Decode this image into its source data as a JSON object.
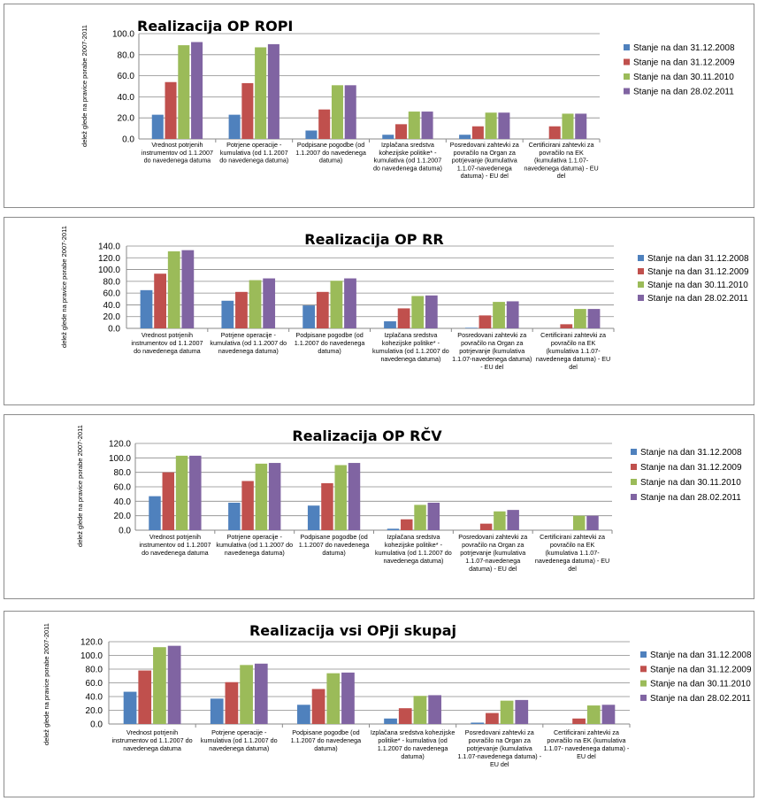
{
  "colors": {
    "s1": "#4f81bd",
    "s2": "#c0504d",
    "s3": "#9bbb59",
    "s4": "#8064a2"
  },
  "chart_data": [
    {
      "type": "bar",
      "title": "Realizacija OP ROPI",
      "ylabel": "delež glede na pravice porabe 2007-2011",
      "ylim": [
        0,
        100
      ],
      "yticks": [
        "0.0",
        "20.0",
        "40.0",
        "60.0",
        "80.0",
        "100.0"
      ],
      "grid": true,
      "legend": "right",
      "categories": [
        [
          "Vrednost potrjenih",
          "instrumentov od 1.1.2007",
          "do navedenega datuma"
        ],
        [
          "Potrjene operacije -",
          "kumulativa (od 1.1.2007",
          "do navedenega datuma)"
        ],
        [
          "Podpisane pogodbe (od",
          "1.1.2007 do navedenega",
          "datuma)"
        ],
        [
          "Izplačana sredstva",
          "kohezijske politike* -",
          "kumulativa (od 1.1.2007",
          "do navedenega datuma)"
        ],
        [
          "Posredovani zahtevki za",
          "povračilo na Organ za",
          "potrjevanje (kumulativa",
          "1.1.07-navedenega",
          "datuma) - EU del"
        ],
        [
          "Certificirani zahtevki za",
          "povračilo na EK",
          "(kumulativa 1.1.07-",
          "navedenega datuma) - EU",
          "del"
        ]
      ],
      "series": [
        {
          "name": "Stanje na dan 31.12.2008",
          "values": [
            23,
            23,
            8,
            4,
            4,
            0
          ]
        },
        {
          "name": "Stanje na dan 31.12.2009",
          "values": [
            54,
            53,
            28,
            14,
            12,
            12
          ]
        },
        {
          "name": "Stanje na dan 30.11.2010",
          "values": [
            89,
            87,
            51,
            26,
            25,
            24
          ]
        },
        {
          "name": "Stanje na dan 28.02.2011",
          "values": [
            92,
            90,
            51,
            26,
            25,
            24
          ]
        }
      ]
    },
    {
      "type": "bar",
      "title": "Realizacija OP RR",
      "ylabel": "delež glede na pravice porabe 2007-2011",
      "ylim": [
        0,
        140
      ],
      "yticks": [
        "0.0",
        "20.0",
        "40.0",
        "60.0",
        "80.0",
        "100.0",
        "120.0",
        "140.0"
      ],
      "grid": true,
      "legend": "right",
      "categories": [
        [
          "Vrednost potrjenih",
          "instrumentov od 1.1.2007",
          "do navedenega datuma"
        ],
        [
          "Potrjene operacije -",
          "kumulativa (od 1.1.2007 do",
          "navedenega datuma)"
        ],
        [
          "Podpisane pogodbe (od",
          "1.1.2007 do navedenega",
          "datuma)"
        ],
        [
          "Izplačana sredstva",
          "kohezijske politike* -",
          "kumulativa (od 1.1.2007 do",
          "navedenega datuma)"
        ],
        [
          "Posredovani zahtevki za",
          "povračilo na Organ za",
          "potrjevanje (kumulativa",
          "1.1.07-navedenega datuma)",
          "- EU del"
        ],
        [
          "Certificirani zahtevki za",
          "povračilo na EK",
          "(kumulativa 1.1.07-",
          "navedenega datuma) - EU",
          "del"
        ]
      ],
      "series": [
        {
          "name": "Stanje na dan 31.12.2008",
          "values": [
            65,
            47,
            39,
            12,
            1,
            0
          ]
        },
        {
          "name": "Stanje na dan 31.12.2009",
          "values": [
            93,
            62,
            62,
            34,
            22,
            7
          ]
        },
        {
          "name": "Stanje na dan 30.11.2010",
          "values": [
            131,
            82,
            81,
            55,
            45,
            33
          ]
        },
        {
          "name": "Stanje na dan 28.02.2011",
          "values": [
            133,
            85,
            85,
            56,
            46,
            33
          ]
        }
      ]
    },
    {
      "type": "bar",
      "title": "Realizacija OP RČV",
      "ylabel": "delež glede na pravice porabe 2007-2011",
      "ylim": [
        0,
        120
      ],
      "yticks": [
        "0.0",
        "20.0",
        "40.0",
        "60.0",
        "80.0",
        "100.0",
        "120.0"
      ],
      "grid": true,
      "legend": "right",
      "categories": [
        [
          "Vrednost potrjenih",
          "instrumentov od 1.1.2007",
          "do navedenega datuma"
        ],
        [
          "Potrjene operacije -",
          "kumulativa (od 1.1.2007 do",
          "navedenega datuma)"
        ],
        [
          "Podpisane pogodbe (od",
          "1.1.2007 do navedenega",
          "datuma)"
        ],
        [
          "Izplačana sredstva",
          "kohezijske politike* -",
          "kumulativa (od 1.1.2007 do",
          "navedenega datuma)"
        ],
        [
          "Posredovani zahtevki za",
          "povračilo na Organ za",
          "potrjevanje (kumulativa",
          "1.1.07-navedenega",
          "datuma) - EU del"
        ],
        [
          "Certificirani zahtevki za",
          "povračilo na EK",
          "(kumulativa 1.1.07-",
          "navedenega datuma) - EU",
          "del"
        ]
      ],
      "series": [
        {
          "name": "Stanje na dan 31.12.2008",
          "values": [
            47,
            38,
            34,
            2,
            0,
            0
          ]
        },
        {
          "name": "Stanje na dan 31.12.2009",
          "values": [
            80,
            68,
            65,
            15,
            9,
            0
          ]
        },
        {
          "name": "Stanje na dan 30.11.2010",
          "values": [
            103,
            92,
            90,
            35,
            26,
            20
          ]
        },
        {
          "name": "Stanje na dan 28.02.2011",
          "values": [
            103,
            93,
            93,
            38,
            28,
            20
          ]
        }
      ]
    },
    {
      "type": "bar",
      "title": "Realizacija vsi OPji skupaj",
      "ylabel": "delež glede na pravice porabe 2007-2011",
      "ylim": [
        0,
        120
      ],
      "yticks": [
        "0.0",
        "20.0",
        "40.0",
        "60.0",
        "80.0",
        "100.0",
        "120.0"
      ],
      "grid": true,
      "legend": "right",
      "categories": [
        [
          "Vrednost potrjenih",
          "instrumentov od 1.1.2007 do",
          "navedenega datuma"
        ],
        [
          "Potrjene operacije -",
          "kumulativa (od 1.1.2007 do",
          "navedenega datuma)"
        ],
        [
          "Podpisane pogodbe (od",
          "1.1.2007 do navedenega",
          "datuma)"
        ],
        [
          "Izplačana sredstva kohezijske",
          "politike* - kumulativa (od",
          "1.1.2007 do navedenega",
          "datuma)"
        ],
        [
          "Posredovani zahtevki za",
          "povračilo na Organ za",
          "potrjevanje (kumulativa",
          "1.1.07-navedenega datuma) -",
          "EU del"
        ],
        [
          "Certificirani zahtevki za",
          "povračilo na EK (kumulativa",
          "1.1.07- navedenega datuma) -",
          "EU del"
        ]
      ],
      "series": [
        {
          "name": "Stanje na dan 31.12.2008",
          "values": [
            47,
            37,
            28,
            8,
            2,
            0
          ]
        },
        {
          "name": "Stanje na dan 31.12.2009",
          "values": [
            78,
            61,
            51,
            23,
            16,
            8
          ]
        },
        {
          "name": "Stanje na dan 30.11.2010",
          "values": [
            112,
            86,
            74,
            41,
            34,
            27
          ]
        },
        {
          "name": "Stanje na dan 28.02.2011",
          "values": [
            114,
            88,
            75,
            42,
            35,
            28
          ]
        }
      ]
    }
  ]
}
